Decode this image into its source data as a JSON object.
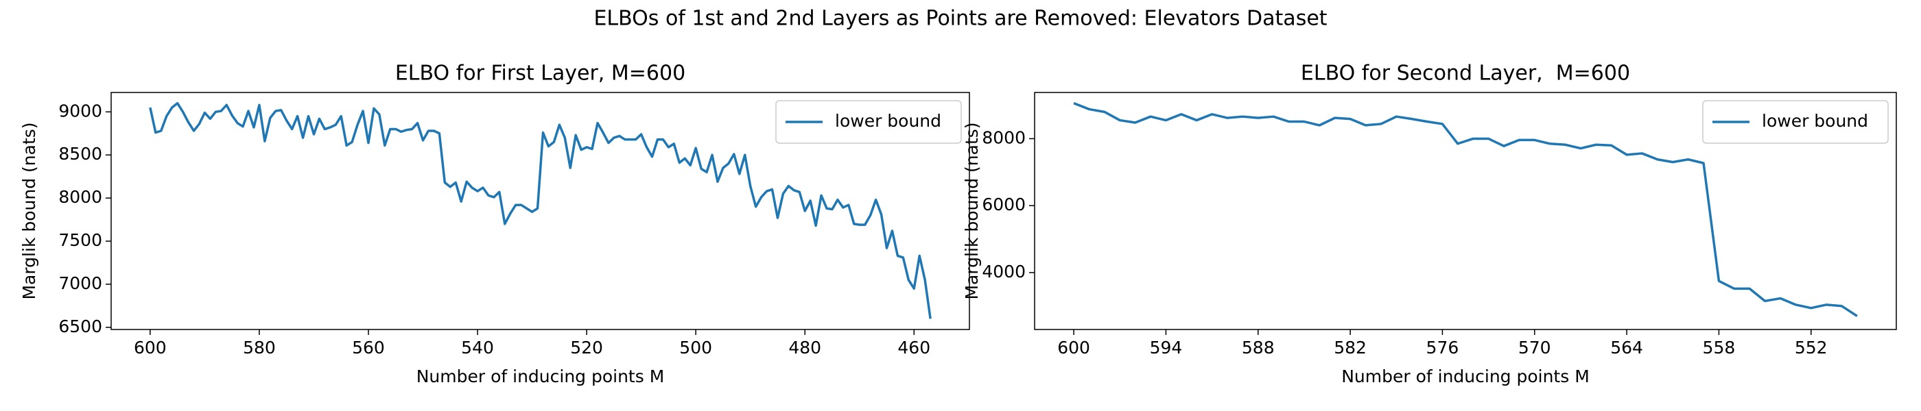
{
  "title": "ELBOs of 1st and 2nd Layers as Points are Removed: Elevators Dataset",
  "chart_data": [
    {
      "type": "line",
      "title": "ELBO for First Layer, M=600",
      "xlabel": "Number of inducing points M",
      "ylabel": "Marglik bound (nats)",
      "x": [
        600,
        599,
        598,
        597,
        596,
        595,
        594,
        593,
        592,
        591,
        590,
        589,
        588,
        587,
        586,
        585,
        584,
        583,
        582,
        581,
        580,
        579,
        578,
        577,
        576,
        575,
        574,
        573,
        572,
        571,
        570,
        569,
        568,
        567,
        566,
        565,
        564,
        563,
        562,
        561,
        560,
        559,
        558,
        557,
        556,
        555,
        554,
        553,
        552,
        551,
        550,
        549,
        548,
        547,
        546,
        545,
        544,
        543,
        542,
        541,
        540,
        539,
        538,
        537,
        536,
        535,
        534,
        533,
        532,
        531,
        530,
        529,
        528,
        527,
        526,
        525,
        524,
        523,
        522,
        521,
        520,
        519,
        518,
        517,
        516,
        515,
        514,
        513,
        512,
        511,
        510,
        509,
        508,
        507,
        506,
        505,
        504,
        503,
        502,
        501,
        500,
        499,
        498,
        497,
        496,
        495,
        494,
        493,
        492,
        491,
        490,
        489,
        488,
        487,
        486,
        485,
        484,
        483,
        482,
        481,
        480,
        479,
        478,
        477,
        476,
        475,
        474,
        473,
        472,
        471,
        470,
        469,
        468,
        467,
        466,
        465,
        464,
        463,
        462,
        461,
        460,
        459,
        458,
        457
      ],
      "series": [
        {
          "name": "lower bound",
          "color": "#1f77b4",
          "values": [
            9050,
            8760,
            8780,
            8950,
            9050,
            9100,
            9000,
            8880,
            8780,
            8860,
            8990,
            8920,
            9000,
            9010,
            9080,
            8960,
            8870,
            8830,
            9010,
            8820,
            9080,
            8660,
            8930,
            9010,
            9020,
            8900,
            8800,
            8950,
            8700,
            8950,
            8740,
            8920,
            8800,
            8820,
            8850,
            8950,
            8610,
            8650,
            8850,
            9010,
            8640,
            9040,
            8970,
            8610,
            8800,
            8800,
            8770,
            8790,
            8800,
            8870,
            8670,
            8780,
            8780,
            8750,
            8180,
            8130,
            8180,
            7960,
            8190,
            8120,
            8080,
            8120,
            8030,
            8010,
            8070,
            7700,
            7820,
            7920,
            7920,
            7880,
            7840,
            7880,
            8760,
            8600,
            8650,
            8850,
            8700,
            8350,
            8730,
            8560,
            8590,
            8570,
            8870,
            8760,
            8640,
            8700,
            8720,
            8680,
            8680,
            8680,
            8740,
            8590,
            8480,
            8680,
            8680,
            8590,
            8630,
            8410,
            8460,
            8380,
            8580,
            8340,
            8300,
            8500,
            8190,
            8350,
            8400,
            8510,
            8280,
            8500,
            8140,
            7900,
            8010,
            8080,
            8100,
            7770,
            8050,
            8140,
            8090,
            8070,
            7850,
            7970,
            7680,
            8030,
            7880,
            7870,
            7980,
            7890,
            7920,
            7700,
            7690,
            7690,
            7800,
            7980,
            7810,
            7420,
            7620,
            7330,
            7310,
            7050,
            6950,
            7330,
            7050,
            6600
          ]
        }
      ],
      "xlim": [
        607.15,
        449.85
      ],
      "xticks": [
        600,
        580,
        560,
        540,
        520,
        500,
        480,
        460
      ],
      "ylim": [
        6475,
        9225
      ],
      "yticks": [
        6500,
        7000,
        7500,
        8000,
        8500,
        9000
      ],
      "legend": "upper right"
    },
    {
      "type": "line",
      "title": "ELBO for Second Layer,  M=600",
      "xlabel": "Number of inducing points M",
      "ylabel": "Marglik bound (nats)",
      "x": [
        600,
        599,
        598,
        597,
        596,
        595,
        594,
        593,
        592,
        591,
        590,
        589,
        588,
        587,
        586,
        585,
        584,
        583,
        582,
        581,
        580,
        579,
        578,
        577,
        576,
        575,
        574,
        573,
        572,
        571,
        570,
        569,
        568,
        567,
        566,
        565,
        564,
        563,
        562,
        561,
        560,
        559,
        558,
        557,
        556,
        555,
        554,
        553,
        552,
        551,
        550,
        549
      ],
      "series": [
        {
          "name": "lower bound",
          "color": "#1f77b4",
          "values": [
            9060,
            8880,
            8800,
            8550,
            8480,
            8660,
            8550,
            8730,
            8550,
            8730,
            8620,
            8660,
            8620,
            8660,
            8510,
            8510,
            8400,
            8620,
            8590,
            8400,
            8440,
            8660,
            8590,
            8510,
            8440,
            7850,
            8000,
            8000,
            7780,
            7960,
            7960,
            7850,
            7820,
            7710,
            7820,
            7800,
            7520,
            7560,
            7380,
            7300,
            7380,
            7270,
            3750,
            3520,
            3520,
            3150,
            3230,
            3040,
            2940,
            3040,
            3000,
            2700
          ]
        }
      ],
      "xlim": [
        602.55,
        546.45
      ],
      "xticks": [
        600,
        594,
        588,
        582,
        576,
        570,
        564,
        558,
        552
      ],
      "ylim": [
        2300,
        9380
      ],
      "yticks": [
        4000,
        6000,
        8000
      ],
      "legend": "upper right"
    }
  ]
}
